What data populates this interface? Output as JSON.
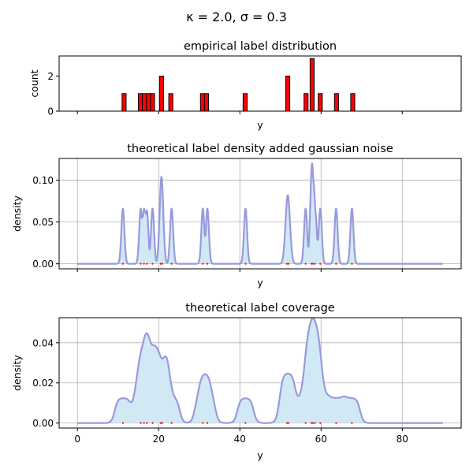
{
  "figure": {
    "suptitle": "κ = 2.0, σ = 0.3"
  },
  "colors": {
    "bar_fill": "#ff0000",
    "bar_edge": "#000000",
    "line": "#9999dd",
    "area_fill": "#d1e9f5",
    "grid": "#b0b0b0",
    "marker": "#ff0000"
  },
  "chart_data": [
    {
      "type": "bar",
      "title": "empirical label distribution",
      "xlabel": "y",
      "ylabel": "count",
      "xlim": [
        -4.5,
        94.5
      ],
      "ylim": [
        0,
        3.15
      ],
      "grid": false,
      "xticks": [
        0,
        20,
        40,
        60,
        80
      ],
      "xtick_labels_visible": false,
      "yticks": [
        0,
        2
      ],
      "ytick_labels": [
        "0",
        "2"
      ],
      "bin_width": 1.0,
      "bars": [
        {
          "x": 11.5,
          "count": 1
        },
        {
          "x": 15.5,
          "count": 1
        },
        {
          "x": 16.5,
          "count": 1
        },
        {
          "x": 17.5,
          "count": 1
        },
        {
          "x": 18.5,
          "count": 1
        },
        {
          "x": 20.7,
          "count": 2
        },
        {
          "x": 23.0,
          "count": 1
        },
        {
          "x": 30.8,
          "count": 1
        },
        {
          "x": 31.8,
          "count": 1
        },
        {
          "x": 41.3,
          "count": 1
        },
        {
          "x": 51.8,
          "count": 2
        },
        {
          "x": 56.3,
          "count": 1
        },
        {
          "x": 57.8,
          "count": 3
        },
        {
          "x": 59.8,
          "count": 1
        },
        {
          "x": 63.8,
          "count": 1
        },
        {
          "x": 67.8,
          "count": 1
        }
      ]
    },
    {
      "type": "line",
      "title": "theoretical label density added gaussian noise",
      "xlabel": "y",
      "ylabel": "density",
      "xlim": [
        -4.5,
        94.5
      ],
      "ylim": [
        -0.006,
        0.126
      ],
      "grid": true,
      "xticks": [
        0,
        20,
        40,
        60,
        80
      ],
      "xtick_labels_visible": false,
      "yticks": [
        0.0,
        0.05,
        0.1
      ],
      "ytick_labels": [
        "0.00",
        "0.05",
        "0.10"
      ],
      "x_range": [
        0,
        90
      ],
      "baseline": 0.0,
      "peaks": [
        {
          "x": 11.2,
          "height": 0.066,
          "width": 0.38
        },
        {
          "x": 15.6,
          "height": 0.066,
          "width": 0.38
        },
        {
          "x": 16.4,
          "height": 0.066,
          "width": 0.38
        },
        {
          "x": 17.1,
          "height": 0.064,
          "width": 0.38
        },
        {
          "x": 18.5,
          "height": 0.066,
          "width": 0.38
        },
        {
          "x": 20.7,
          "height": 0.104,
          "width": 0.45
        },
        {
          "x": 23.2,
          "height": 0.066,
          "width": 0.38
        },
        {
          "x": 30.9,
          "height": 0.066,
          "width": 0.38
        },
        {
          "x": 32.0,
          "height": 0.066,
          "width": 0.38
        },
        {
          "x": 41.4,
          "height": 0.066,
          "width": 0.38
        },
        {
          "x": 51.8,
          "height": 0.082,
          "width": 0.55
        },
        {
          "x": 56.2,
          "height": 0.066,
          "width": 0.38
        },
        {
          "x": 57.8,
          "height": 0.12,
          "width": 0.45
        },
        {
          "x": 58.5,
          "height": 0.065,
          "width": 0.45
        },
        {
          "x": 59.8,
          "height": 0.066,
          "width": 0.38
        },
        {
          "x": 63.7,
          "height": 0.066,
          "width": 0.38
        },
        {
          "x": 67.6,
          "height": 0.066,
          "width": 0.38
        }
      ],
      "markers_x": [
        11.2,
        15.6,
        16.4,
        17.1,
        18.5,
        20.5,
        20.9,
        23.2,
        30.9,
        32.0,
        41.4,
        51.6,
        52.0,
        56.2,
        57.6,
        58.0,
        58.5,
        59.8,
        63.7,
        67.6
      ]
    },
    {
      "type": "area",
      "title": "theoretical label coverage",
      "xlabel": "y",
      "ylabel": "density",
      "xlim": [
        -4.5,
        94.5
      ],
      "ylim": [
        -0.0025,
        0.0525
      ],
      "grid": true,
      "xticks": [
        0,
        20,
        40,
        60,
        80
      ],
      "xtick_labels": [
        "0",
        "20",
        "40",
        "60",
        "80"
      ],
      "yticks": [
        0.0,
        0.02,
        0.04
      ],
      "ytick_labels": [
        "0.00",
        "0.02",
        "0.04"
      ],
      "x_range": [
        0,
        90
      ],
      "plateau_height": 0.0125,
      "plateau_halfwidth": 2.0,
      "edge_softness": 0.4,
      "centers": [
        11.2,
        15.6,
        16.4,
        17.1,
        18.5,
        20.5,
        20.9,
        23.2,
        30.9,
        32.0,
        41.4,
        51.6,
        52.0,
        56.2,
        57.6,
        58.0,
        58.5,
        59.8,
        63.7,
        67.6
      ],
      "markers_x": [
        11.2,
        15.6,
        16.4,
        17.1,
        18.5,
        20.5,
        20.9,
        23.2,
        30.9,
        32.0,
        41.4,
        51.6,
        52.0,
        56.2,
        57.6,
        58.0,
        58.5,
        59.8,
        63.7,
        67.6
      ]
    }
  ]
}
